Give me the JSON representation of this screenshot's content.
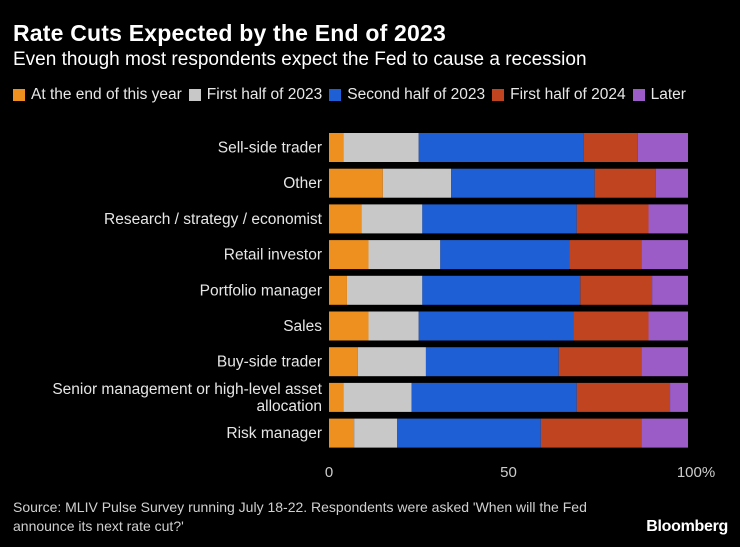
{
  "title": "Rate Cuts Expected by the End of 2023",
  "subtitle": "Even though most respondents expect the Fed to cause a recession",
  "source": "Source: MLIV Pulse Survey running July 18-22. Respondents were asked 'When will the Fed announce its next rate cut?'",
  "logo": "Bloomberg",
  "colors": {
    "background": "#000000",
    "text": "#ffffff",
    "tick": "#cccccc"
  },
  "chart_data": {
    "type": "bar",
    "orientation": "horizontal",
    "stacked": true,
    "categories": [
      "Sell-side trader",
      "Other",
      "Research / strategy / economist",
      "Retail investor",
      "Portfolio manager",
      "Sales",
      "Buy-side trader",
      "Senior management or high-level asset allocation",
      "Risk manager"
    ],
    "category_lines": [
      [
        "Sell-side trader"
      ],
      [
        "Other"
      ],
      [
        "Research / strategy / economist"
      ],
      [
        "Retail investor"
      ],
      [
        "Portfolio manager"
      ],
      [
        "Sales"
      ],
      [
        "Buy-side trader"
      ],
      [
        "Senior management or high-level asset",
        "allocation"
      ],
      [
        "Risk manager"
      ]
    ],
    "series": [
      {
        "name": "At the end of this year",
        "color": "#ee9020",
        "values": [
          4,
          15,
          9,
          11,
          5,
          11,
          8,
          4,
          7
        ]
      },
      {
        "name": "First half of 2023",
        "color": "#c8c8c8",
        "values": [
          21,
          19,
          17,
          20,
          21,
          14,
          19,
          19,
          12
        ]
      },
      {
        "name": "Second half of 2023",
        "color": "#1f5fd6",
        "values": [
          46,
          40,
          43,
          36,
          44,
          43,
          37,
          46,
          40
        ]
      },
      {
        "name": "First half of 2024",
        "color": "#c0441f",
        "values": [
          15,
          17,
          20,
          20,
          20,
          21,
          23,
          26,
          28
        ]
      },
      {
        "name": "Later",
        "color": "#9b5cc7",
        "values": [
          14,
          9,
          11,
          13,
          10,
          11,
          13,
          5,
          13
        ]
      }
    ],
    "xlim": [
      0,
      100
    ],
    "xticks": [
      0,
      50,
      100
    ],
    "xtick_labels": [
      "0",
      "50",
      "100%"
    ],
    "legend": "top-left",
    "grid": false
  }
}
